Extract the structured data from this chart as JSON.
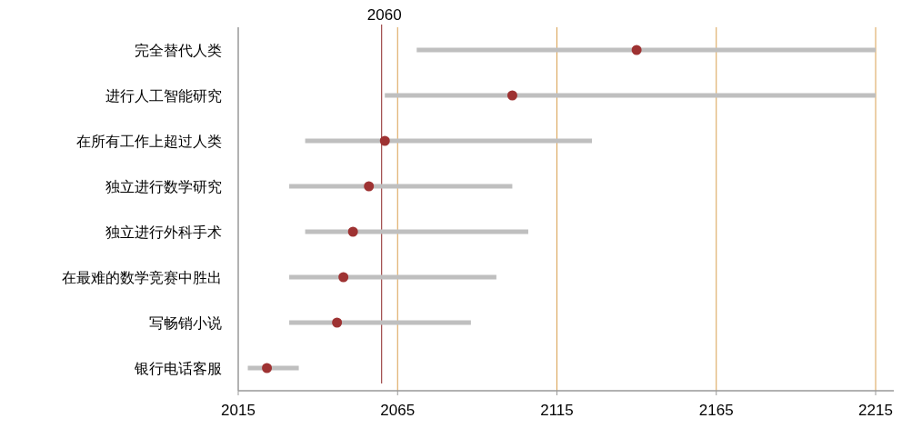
{
  "chart_data": {
    "type": "bar",
    "orientation": "horizontal",
    "categories": [
      "完全替代人类",
      "进行人工智能研究",
      "在所有工作上超过人类",
      "独立进行数学研究",
      "独立进行外科手术",
      "在最难的数学竞赛中胜出",
      "写畅销小说",
      "银行电话客服"
    ],
    "xlim": [
      2015,
      2215
    ],
    "xticks": [
      2015,
      2065,
      2115,
      2165,
      2215
    ],
    "grid": "x",
    "marker": "circle",
    "ref_lines": [
      {
        "axis": "x",
        "value": 2060,
        "label": "2060",
        "color": "#8b2323"
      }
    ],
    "series": [
      {
        "type": "bar",
        "color": "#bfbfbf",
        "base": [
          2071,
          2061,
          2036,
          2031,
          2036,
          2031,
          2031,
          2018
        ],
        "values": [
          144,
          154,
          90,
          70,
          70,
          65,
          57,
          16
        ]
      },
      {
        "type": "scatter",
        "color": "#9e3232",
        "values": [
          2140,
          2101,
          2061,
          2056,
          2051,
          2048,
          2046,
          2024
        ]
      }
    ]
  }
}
